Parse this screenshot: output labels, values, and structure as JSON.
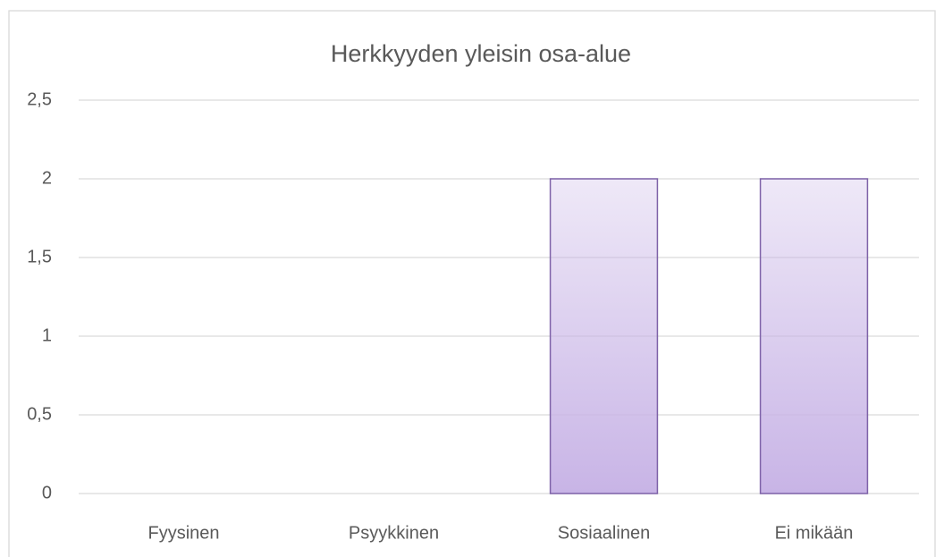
{
  "chart_data": {
    "type": "bar",
    "title": "Herkkyyden yleisin osa-alue",
    "categories": [
      "Fyysinen",
      "Psyykkinen",
      "Sosiaalinen",
      "Ei mikään"
    ],
    "values": [
      0,
      0,
      2,
      2
    ],
    "color": "#c8b4e6",
    "edge_color": "#7e62a8",
    "ylim": [
      0,
      2.5
    ],
    "yticks": [
      0,
      {
        "value": 0.5,
        "label": "0,5"
      },
      1,
      {
        "value": 1.5,
        "label": "1,5"
      },
      2,
      {
        "value": 2.5,
        "label": "2,5"
      }
    ],
    "grid": true
  }
}
